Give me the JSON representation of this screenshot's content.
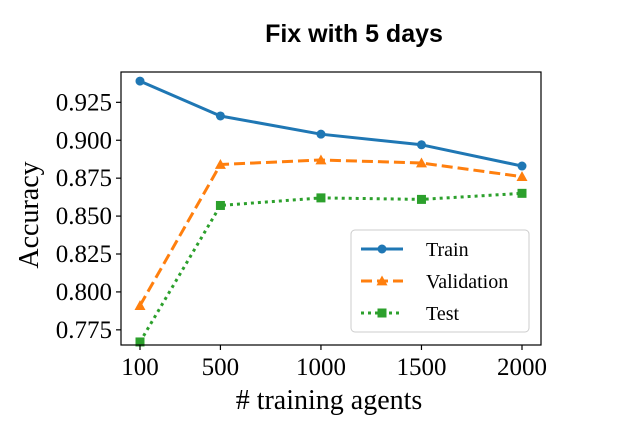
{
  "chart_data": {
    "type": "line",
    "title": "Fix with 5 days",
    "xlabel": "# training agents",
    "ylabel": "Accuracy",
    "x": [
      100,
      500,
      1000,
      1500,
      2000
    ],
    "xticks": [
      "100",
      "500",
      "1000",
      "1500",
      "2000"
    ],
    "yticks": [
      "0.775",
      "0.800",
      "0.825",
      "0.850",
      "0.875",
      "0.900",
      "0.925"
    ],
    "ylim": [
      0.765,
      0.945
    ],
    "grid": false,
    "legend_position": "lower-right",
    "series": [
      {
        "name": "Train",
        "values": [
          0.939,
          0.916,
          0.904,
          0.897,
          0.883
        ],
        "color": "#1f77b4",
        "linestyle": "solid",
        "marker": "circle"
      },
      {
        "name": "Validation",
        "values": [
          0.791,
          0.884,
          0.887,
          0.885,
          0.876
        ],
        "color": "#ff7f0e",
        "linestyle": "dashed",
        "marker": "triangle"
      },
      {
        "name": "Test",
        "values": [
          0.767,
          0.857,
          0.862,
          0.861,
          0.865
        ],
        "color": "#2ca02c",
        "linestyle": "dotted",
        "marker": "square"
      }
    ]
  }
}
